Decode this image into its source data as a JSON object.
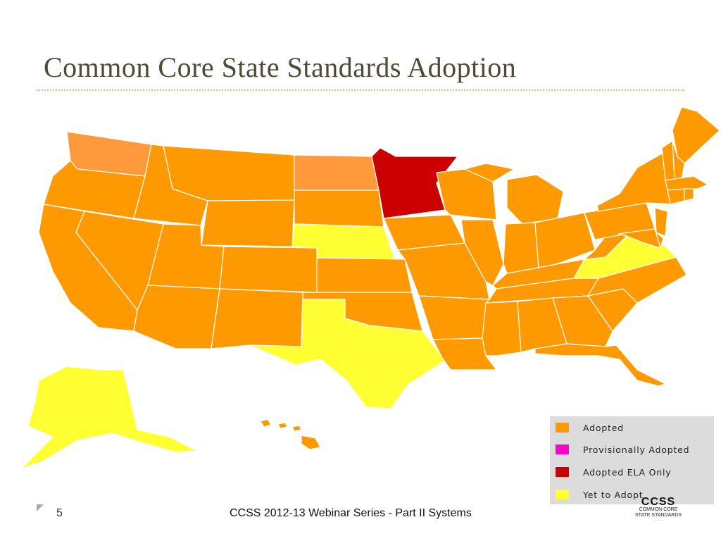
{
  "slide": {
    "title": "Common Core State Standards Adoption",
    "number": "5",
    "footer": "CCSS 2012-13 Webinar Series - Part II Systems"
  },
  "logo": {
    "mark": "CCSS",
    "line1": "COMMON CORE",
    "line2": "STATE STANDARDS"
  },
  "colors": {
    "adopted": "#ff9900",
    "adopted_alt_shade": "#ff9a3c",
    "provisionally_adopted": "#ff00cc",
    "adopted_ela_only": "#cc0000",
    "yet_to_adopt": "#ffff33",
    "legend_bg": "#dcdcdc",
    "title_text": "#4e4a36"
  },
  "legend": [
    {
      "key": "adopted",
      "label": "Adopted"
    },
    {
      "key": "provisionally_adopted",
      "label": "Provisionally Adopted"
    },
    {
      "key": "adopted_ela_only",
      "label": "Adopted ELA Only"
    },
    {
      "key": "yet_to_adopt",
      "label": "Yet to Adopt"
    }
  ],
  "map": {
    "states": {
      "WA": "adopted",
      "OR": "adopted",
      "CA": "adopted",
      "ID": "adopted",
      "NV": "adopted",
      "MT": "adopted",
      "WY": "adopted",
      "UT": "adopted",
      "AZ": "adopted",
      "CO": "adopted",
      "NM": "adopted",
      "ND": "adopted",
      "SD": "adopted",
      "NE": "yet_to_adopt",
      "KS": "adopted",
      "OK": "adopted",
      "TX": "yet_to_adopt",
      "MN": "adopted_ela_only",
      "IA": "adopted",
      "MO": "adopted",
      "AR": "adopted",
      "LA": "adopted",
      "WI": "adopted",
      "IL": "adopted",
      "MI": "adopted",
      "IN": "adopted",
      "OH": "adopted",
      "KY": "adopted",
      "TN": "adopted",
      "MS": "adopted",
      "AL": "adopted",
      "GA": "adopted",
      "FL": "adopted",
      "SC": "adopted",
      "NC": "adopted",
      "VA": "yet_to_adopt",
      "WV": "adopted",
      "PA": "adopted",
      "NY": "adopted",
      "ME": "adopted",
      "NH": "adopted",
      "VT": "adopted",
      "MA": "adopted",
      "CT": "adopted",
      "RI": "adopted",
      "NJ": "adopted",
      "DE": "adopted",
      "MD": "adopted",
      "AK": "yet_to_adopt",
      "HI": "adopted"
    }
  }
}
